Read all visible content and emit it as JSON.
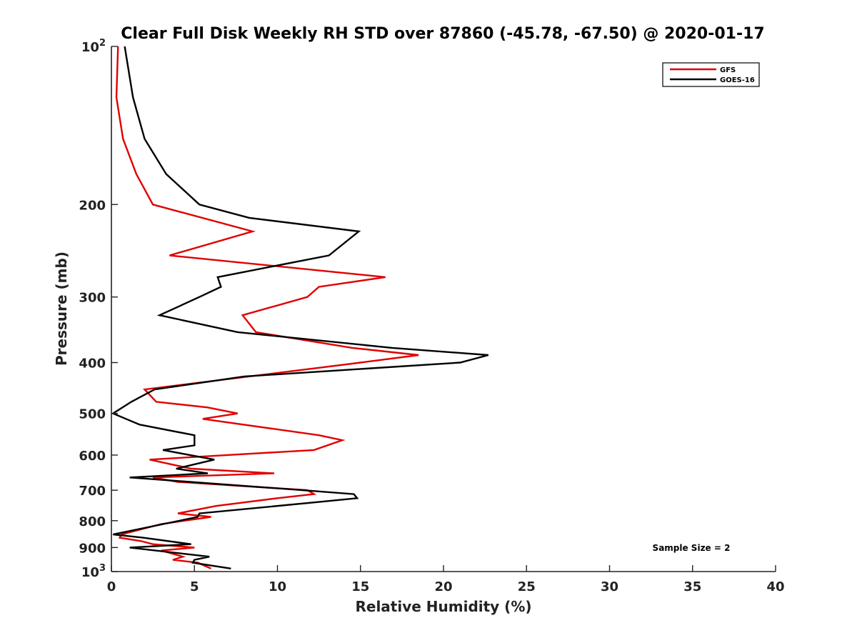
{
  "chart_data": {
    "type": "line",
    "title": "Clear Full Disk Weekly RH STD over 87860 (-45.78, -67.50) @ 2020-01-17",
    "xlabel": "Relative Humidity (%)",
    "ylabel": "Pressure (mb)",
    "xlim": [
      0,
      40
    ],
    "ylim": [
      100,
      1000
    ],
    "y_scale": "log",
    "y_reversed": true,
    "grid": false,
    "legend_position": "top-right",
    "x_ticks": [
      "0",
      "5",
      "10",
      "15",
      "20",
      "25",
      "30",
      "35",
      "40"
    ],
    "y_ticks": [
      {
        "value": 100,
        "label": "10",
        "sup": "2"
      },
      {
        "value": 200,
        "label": "200",
        "sup": ""
      },
      {
        "value": 300,
        "label": "300",
        "sup": ""
      },
      {
        "value": 400,
        "label": "400",
        "sup": ""
      },
      {
        "value": 500,
        "label": "500",
        "sup": ""
      },
      {
        "value": 600,
        "label": "600",
        "sup": ""
      },
      {
        "value": 700,
        "label": "700",
        "sup": ""
      },
      {
        "value": 800,
        "label": "800",
        "sup": ""
      },
      {
        "value": 900,
        "label": "900",
        "sup": ""
      },
      {
        "value": 1000,
        "label": "10",
        "sup": "3"
      }
    ],
    "annotation": "Sample Size = 2",
    "series": [
      {
        "name": "GFS",
        "color": "#e00000",
        "points": [
          [
            0.4,
            100
          ],
          [
            0.3,
            125
          ],
          [
            0.7,
            150
          ],
          [
            1.5,
            175
          ],
          [
            2.5,
            200
          ],
          [
            8.5,
            225
          ],
          [
            3.5,
            250
          ],
          [
            16.5,
            275
          ],
          [
            12.5,
            287
          ],
          [
            11.8,
            300
          ],
          [
            7.9,
            325
          ],
          [
            8.7,
            350
          ],
          [
            14.5,
            375
          ],
          [
            18.5,
            387
          ],
          [
            15,
            400
          ],
          [
            2,
            450
          ],
          [
            2.7,
            475
          ],
          [
            5.8,
            487
          ],
          [
            7.6,
            500
          ],
          [
            5.5,
            512
          ],
          [
            12.5,
            550
          ],
          [
            13.9,
            562
          ],
          [
            12.2,
            587
          ],
          [
            2.3,
            612
          ],
          [
            4.8,
            637
          ],
          [
            9.8,
            650
          ],
          [
            2.5,
            662
          ],
          [
            4,
            675
          ],
          [
            11.8,
            700
          ],
          [
            12.2,
            712
          ],
          [
            10,
            725
          ],
          [
            6.3,
            750
          ],
          [
            4,
            775
          ],
          [
            6,
            787
          ],
          [
            3,
            812
          ],
          [
            0.6,
            850
          ],
          [
            0.5,
            862
          ],
          [
            1.8,
            875
          ],
          [
            2.5,
            887
          ],
          [
            5,
            900
          ],
          [
            3,
            912
          ],
          [
            4.3,
            937
          ],
          [
            3.7,
            950
          ],
          [
            5.2,
            962
          ],
          [
            6,
            987
          ]
        ]
      },
      {
        "name": "GOES-16",
        "color": "#000000",
        "points": [
          [
            0.8,
            100
          ],
          [
            1.3,
            125
          ],
          [
            2,
            150
          ],
          [
            3.3,
            175
          ],
          [
            5.3,
            200
          ],
          [
            8.3,
            212
          ],
          [
            14.9,
            225
          ],
          [
            13.1,
            250
          ],
          [
            6.4,
            275
          ],
          [
            6.6,
            287
          ],
          [
            5.3,
            300
          ],
          [
            2.9,
            325
          ],
          [
            7.6,
            350
          ],
          [
            16.9,
            375
          ],
          [
            22.7,
            387
          ],
          [
            21,
            400
          ],
          [
            8,
            425
          ],
          [
            2.6,
            450
          ],
          [
            1.2,
            475
          ],
          [
            0.1,
            500
          ],
          [
            1.7,
            525
          ],
          [
            5,
            550
          ],
          [
            5,
            575
          ],
          [
            3.1,
            587
          ],
          [
            6.2,
            612
          ],
          [
            3.9,
            637
          ],
          [
            5.8,
            650
          ],
          [
            1.1,
            662
          ],
          [
            11.5,
            700
          ],
          [
            14.6,
            712
          ],
          [
            14.8,
            725
          ],
          [
            12.5,
            737
          ],
          [
            5.3,
            775
          ],
          [
            5.2,
            787
          ],
          [
            0.1,
            850
          ],
          [
            1.9,
            862
          ],
          [
            4.8,
            887
          ],
          [
            1.1,
            900
          ],
          [
            5.9,
            937
          ],
          [
            5,
            950
          ],
          [
            4.9,
            962
          ],
          [
            7.2,
            987
          ]
        ]
      }
    ]
  }
}
